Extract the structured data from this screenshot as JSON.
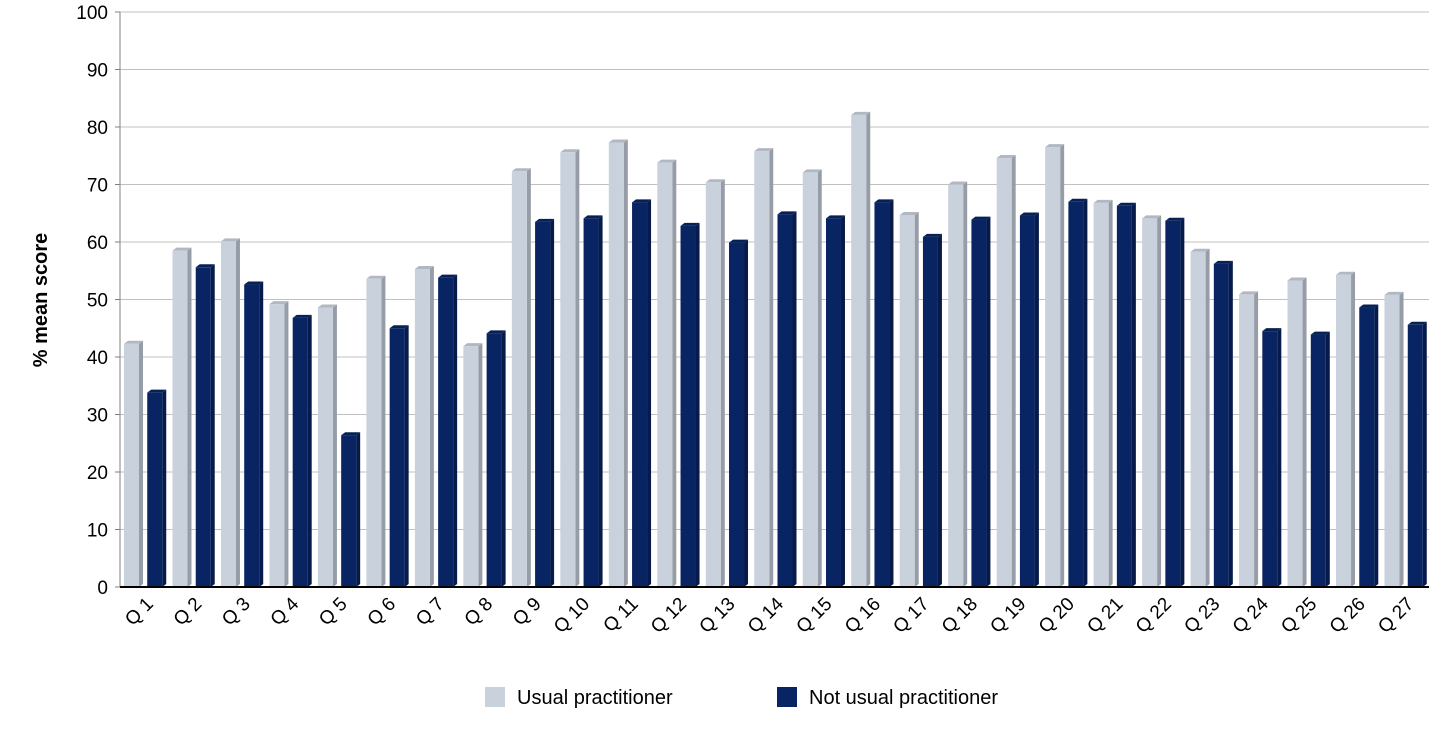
{
  "chart_data": {
    "type": "bar",
    "title": "",
    "xlabel": "",
    "ylabel": "% mean score",
    "ylim": [
      0,
      100
    ],
    "yticks": [
      0,
      10,
      20,
      30,
      40,
      50,
      60,
      70,
      80,
      90,
      100
    ],
    "grid": true,
    "legend_position": "bottom",
    "categories": [
      "Q 1",
      "Q 2",
      "Q 3",
      "Q 4",
      "Q 5",
      "Q 6",
      "Q 7",
      "Q 8",
      "Q 9",
      "Q 10",
      "Q 11",
      "Q 12",
      "Q 13",
      "Q 14",
      "Q 15",
      "Q 16",
      "Q 17",
      "Q 18",
      "Q 19",
      "Q 20",
      "Q 21",
      "Q 22",
      "Q 23",
      "Q 24",
      "Q 25",
      "Q 26",
      "Q 27"
    ],
    "series": [
      {
        "name": "Usual practitioner",
        "color": "#c9d1dd",
        "values": [
          42.3,
          58.5,
          60.1,
          49.2,
          48.6,
          53.6,
          55.3,
          41.9,
          72.3,
          75.6,
          77.3,
          73.8,
          70.4,
          75.8,
          72.1,
          82.1,
          64.7,
          70.0,
          74.6,
          76.5,
          66.8,
          64.1,
          58.3,
          50.9,
          53.3,
          54.3,
          50.8
        ]
      },
      {
        "name": "Not usual practitioner",
        "color": "#082462",
        "values": [
          33.8,
          55.6,
          52.6,
          46.8,
          26.4,
          45.0,
          53.8,
          44.1,
          63.5,
          64.1,
          66.9,
          62.8,
          59.9,
          64.8,
          64.1,
          66.9,
          60.9,
          63.9,
          64.6,
          67.0,
          66.3,
          63.7,
          56.2,
          44.5,
          43.9,
          48.6,
          45.6
        ]
      }
    ]
  }
}
